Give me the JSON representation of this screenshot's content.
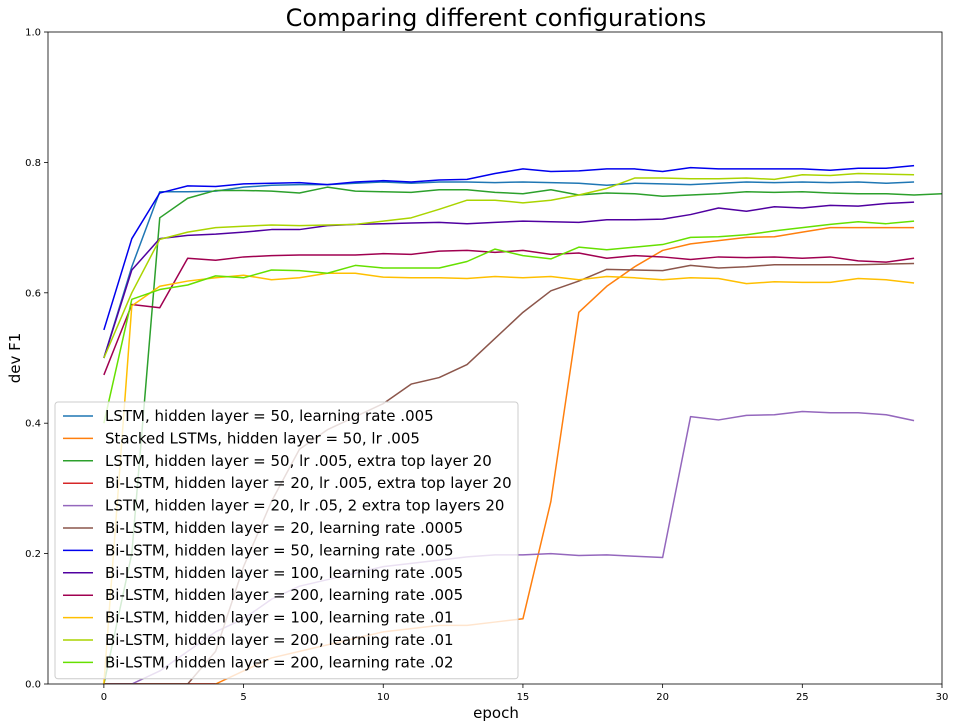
{
  "chart_data": {
    "type": "line",
    "title": "Comparing different configurations",
    "xlabel": "epoch",
    "ylabel": "dev F1",
    "xlim": [
      -2,
      30
    ],
    "ylim": [
      0,
      1.0
    ],
    "x_ticks": [
      0,
      5,
      10,
      15,
      20,
      25,
      30
    ],
    "y_ticks": [
      0.0,
      0.2,
      0.4,
      0.6,
      0.8,
      1.0
    ],
    "x_tick_labels": [
      "0",
      "5",
      "10",
      "15",
      "20",
      "25",
      "30"
    ],
    "y_tick_labels": [
      "0.0",
      "0.2",
      "0.4",
      "0.6",
      "0.8",
      "1.0"
    ],
    "grid": false,
    "legend_position": "lower-left",
    "series": [
      {
        "name": "LSTM, hidden layer = 50, learning rate .005",
        "color": "#1f77b4",
        "x": [
          0,
          1,
          2,
          3,
          4,
          5,
          6,
          7,
          8,
          9,
          10,
          11,
          12,
          13,
          14,
          15,
          16,
          17,
          18,
          19,
          20,
          21,
          22,
          23,
          24,
          25,
          26,
          27,
          28,
          29
        ],
        "y": [
          0.5,
          0.64,
          0.755,
          0.755,
          0.756,
          0.762,
          0.765,
          0.766,
          0.766,
          0.768,
          0.77,
          0.768,
          0.77,
          0.77,
          0.769,
          0.77,
          0.769,
          0.768,
          0.765,
          0.768,
          0.767,
          0.766,
          0.768,
          0.77,
          0.769,
          0.77,
          0.769,
          0.77,
          0.768,
          0.77
        ]
      },
      {
        "name": "Stacked LSTMs, hidden layer = 50, lr .005",
        "color": "#ff7f0e",
        "x": [
          0,
          1,
          2,
          3,
          4,
          5,
          6,
          7,
          8,
          9,
          10,
          11,
          12,
          13,
          14,
          15,
          16,
          17,
          18,
          19,
          20,
          21,
          22,
          23,
          24,
          25,
          26,
          27,
          28,
          29
        ],
        "y": [
          0.0,
          0.0,
          0.0,
          0.0,
          0.0,
          0.02,
          0.04,
          0.05,
          0.06,
          0.07,
          0.08,
          0.085,
          0.09,
          0.09,
          0.095,
          0.1,
          0.28,
          0.57,
          0.61,
          0.64,
          0.665,
          0.675,
          0.68,
          0.685,
          0.686,
          0.693,
          0.7,
          0.7,
          0.7,
          0.7
        ]
      },
      {
        "name": "LSTM, hidden layer = 50, lr .005, extra top layer 20",
        "color": "#2ca02c",
        "x": [
          0,
          1,
          2,
          3,
          4,
          5,
          6,
          7,
          8,
          9,
          10,
          11,
          12,
          13,
          14,
          15,
          16,
          17,
          18,
          19,
          20,
          21,
          22,
          23,
          24,
          25,
          26,
          27,
          28,
          29,
          30
        ],
        "y": [
          0.0,
          0.2,
          0.715,
          0.745,
          0.757,
          0.757,
          0.756,
          0.753,
          0.762,
          0.756,
          0.755,
          0.754,
          0.758,
          0.758,
          0.754,
          0.752,
          0.758,
          0.75,
          0.753,
          0.752,
          0.748,
          0.75,
          0.752,
          0.755,
          0.754,
          0.755,
          0.753,
          0.752,
          0.752,
          0.75,
          0.752
        ]
      },
      {
        "name": "Bi-LSTM, hidden layer = 20, lr .005, extra top layer 20",
        "color": "#d62728",
        "x": [
          0,
          1,
          2,
          3,
          4
        ],
        "y": [
          0.0,
          0.0,
          0.0,
          0.0,
          0.0
        ]
      },
      {
        "name": "LSTM, hidden layer = 20, lr .05, 2 extra top layers 20",
        "color": "#9467bd",
        "x": [
          0,
          1,
          2,
          3,
          4,
          5,
          6,
          7,
          8,
          9,
          10,
          11,
          12,
          13,
          14,
          15,
          16,
          17,
          18,
          19,
          20,
          21,
          22,
          23,
          24,
          25,
          26,
          27,
          28,
          29
        ],
        "y": [
          0.0,
          0.0,
          0.02,
          0.05,
          0.08,
          0.1,
          0.13,
          0.15,
          0.16,
          0.17,
          0.18,
          0.185,
          0.19,
          0.195,
          0.198,
          0.198,
          0.2,
          0.197,
          0.198,
          0.196,
          0.194,
          0.41,
          0.405,
          0.412,
          0.413,
          0.418,
          0.416,
          0.416,
          0.413,
          0.404
        ]
      },
      {
        "name": "Bi-LSTM, hidden layer = 20, learning rate .0005",
        "color": "#8c564b",
        "x": [
          0,
          1,
          2,
          3,
          4,
          5,
          6,
          7,
          8,
          9,
          10,
          11,
          12,
          13,
          14,
          15,
          16,
          17,
          18,
          19,
          20,
          21,
          22,
          23,
          24,
          25,
          26,
          27,
          28,
          29
        ],
        "y": [
          0.0,
          0.0,
          0.0,
          0.0,
          0.05,
          0.18,
          0.28,
          0.36,
          0.39,
          0.41,
          0.43,
          0.46,
          0.47,
          0.49,
          0.53,
          0.57,
          0.603,
          0.618,
          0.636,
          0.635,
          0.634,
          0.642,
          0.638,
          0.64,
          0.643,
          0.643,
          0.643,
          0.643,
          0.644,
          0.645
        ]
      },
      {
        "name": "Bi-LSTM, hidden layer = 50, learning rate .005",
        "color": "#0000ee",
        "x": [
          0,
          1,
          2,
          3,
          4,
          5,
          6,
          7,
          8,
          9,
          10,
          11,
          12,
          13,
          14,
          15,
          16,
          17,
          18,
          19,
          20,
          21,
          22,
          23,
          24,
          25,
          26,
          27,
          28,
          29
        ],
        "y": [
          0.543,
          0.683,
          0.753,
          0.764,
          0.763,
          0.767,
          0.768,
          0.769,
          0.766,
          0.77,
          0.772,
          0.77,
          0.773,
          0.774,
          0.783,
          0.79,
          0.786,
          0.787,
          0.79,
          0.79,
          0.786,
          0.792,
          0.79,
          0.79,
          0.79,
          0.79,
          0.788,
          0.791,
          0.791,
          0.795
        ]
      },
      {
        "name": "Bi-LSTM, hidden layer = 100, learning rate .005",
        "color": "#5000a0",
        "x": [
          0,
          1,
          2,
          3,
          4,
          5,
          6,
          7,
          8,
          9,
          10,
          11,
          12,
          13,
          14,
          15,
          16,
          17,
          18,
          19,
          20,
          21,
          22,
          23,
          24,
          25,
          26,
          27,
          28,
          29
        ],
        "y": [
          0.5,
          0.635,
          0.683,
          0.688,
          0.69,
          0.693,
          0.697,
          0.697,
          0.703,
          0.705,
          0.706,
          0.707,
          0.708,
          0.706,
          0.708,
          0.71,
          0.709,
          0.708,
          0.712,
          0.712,
          0.713,
          0.72,
          0.73,
          0.725,
          0.732,
          0.73,
          0.734,
          0.733,
          0.737,
          0.739
        ]
      },
      {
        "name": "Bi-LSTM, hidden layer = 200, learning rate .005",
        "color": "#a00050",
        "x": [
          0,
          1,
          2,
          3,
          4,
          5,
          6,
          7,
          8,
          9,
          10,
          11,
          12,
          13,
          14,
          15,
          16,
          17,
          18,
          19,
          20,
          21,
          22,
          23,
          24,
          25,
          26,
          27,
          28,
          29
        ],
        "y": [
          0.474,
          0.582,
          0.577,
          0.653,
          0.65,
          0.655,
          0.657,
          0.658,
          0.658,
          0.658,
          0.66,
          0.659,
          0.664,
          0.665,
          0.662,
          0.665,
          0.659,
          0.661,
          0.653,
          0.657,
          0.655,
          0.651,
          0.655,
          0.654,
          0.655,
          0.653,
          0.655,
          0.649,
          0.647,
          0.653
        ]
      },
      {
        "name": "Bi-LSTM, hidden layer = 100, learning rate .01",
        "color": "#ffbf00",
        "x": [
          0,
          1,
          2,
          3,
          4,
          5,
          6,
          7,
          8,
          9,
          10,
          11,
          12,
          13,
          14,
          15,
          16,
          17,
          18,
          19,
          20,
          21,
          22,
          23,
          24,
          25,
          26,
          27,
          28,
          29
        ],
        "y": [
          0.0,
          0.58,
          0.61,
          0.618,
          0.623,
          0.627,
          0.62,
          0.623,
          0.63,
          0.63,
          0.624,
          0.623,
          0.623,
          0.622,
          0.625,
          0.623,
          0.625,
          0.62,
          0.625,
          0.623,
          0.62,
          0.623,
          0.622,
          0.614,
          0.617,
          0.616,
          0.616,
          0.622,
          0.62,
          0.615
        ]
      },
      {
        "name": "Bi-LSTM, hidden layer = 200, learning rate .01",
        "color": "#aad400",
        "x": [
          0,
          1,
          2,
          3,
          4,
          5,
          6,
          7,
          8,
          9,
          10,
          11,
          12,
          13,
          14,
          15,
          16,
          17,
          18,
          19,
          20,
          21,
          22,
          23,
          24,
          25,
          26,
          27,
          28,
          29
        ],
        "y": [
          0.5,
          0.6,
          0.682,
          0.693,
          0.7,
          0.702,
          0.704,
          0.703,
          0.704,
          0.705,
          0.71,
          0.715,
          0.728,
          0.742,
          0.742,
          0.738,
          0.742,
          0.75,
          0.76,
          0.776,
          0.776,
          0.775,
          0.775,
          0.776,
          0.774,
          0.781,
          0.78,
          0.783,
          0.782,
          0.781
        ]
      },
      {
        "name": "Bi-LSTM, hidden layer = 200, learning rate .02",
        "color": "#66e000",
        "x": [
          0,
          1,
          2,
          3,
          4,
          5,
          6,
          7,
          8,
          9,
          10,
          11,
          12,
          13,
          14,
          15,
          16,
          17,
          18,
          19,
          20,
          21,
          22,
          23,
          24,
          25,
          26,
          27,
          28,
          29
        ],
        "y": [
          0.4,
          0.59,
          0.605,
          0.612,
          0.626,
          0.623,
          0.635,
          0.634,
          0.63,
          0.642,
          0.638,
          0.638,
          0.638,
          0.648,
          0.667,
          0.657,
          0.652,
          0.67,
          0.666,
          0.67,
          0.674,
          0.685,
          0.686,
          0.689,
          0.695,
          0.7,
          0.705,
          0.709,
          0.706,
          0.71
        ]
      }
    ]
  }
}
